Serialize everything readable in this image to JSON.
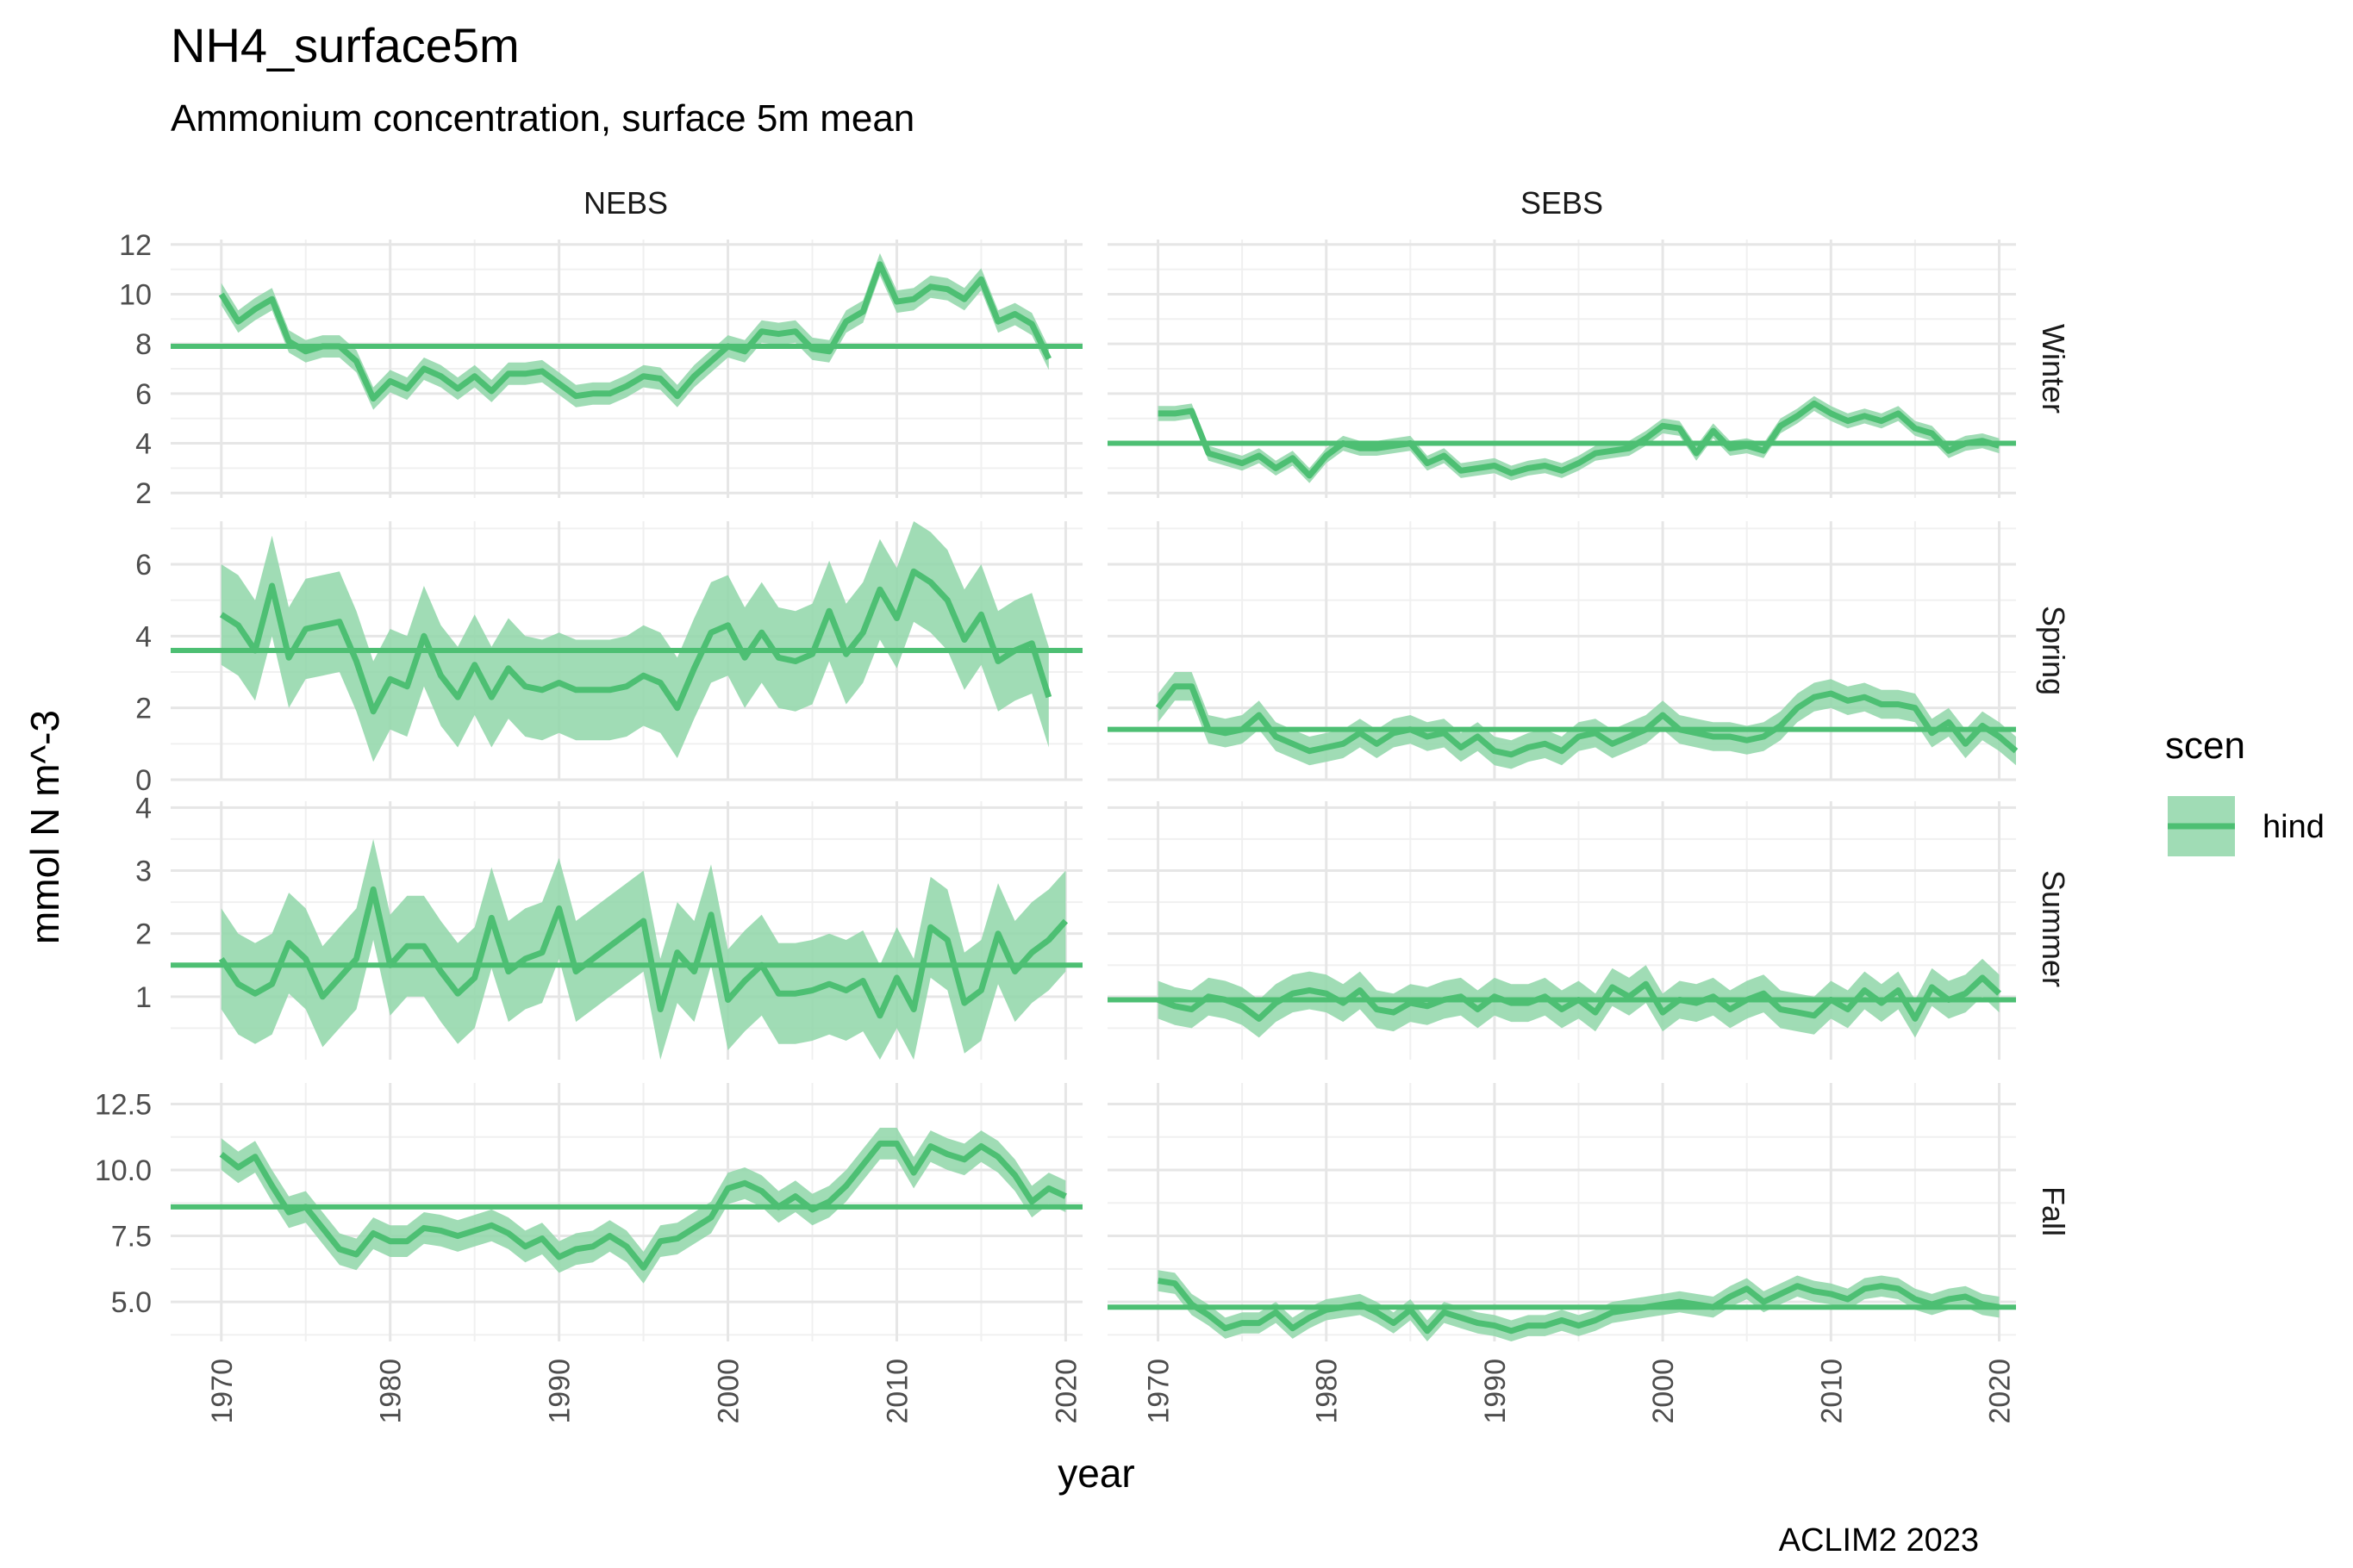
{
  "chart_data": {
    "type": "line",
    "title": "NH4_surface5m",
    "subtitle": "Ammonium concentration, surface 5m mean",
    "xlabel": "year",
    "ylabel": "mmol N m^-3",
    "caption": "ACLIM2 2023",
    "columns": [
      "NEBS",
      "SEBS"
    ],
    "rows": [
      "Winter",
      "Spring",
      "Summer",
      "Fall"
    ],
    "xlim": [
      1967,
      2021
    ],
    "x_ticks": [
      "1970",
      "1980",
      "1990",
      "2000",
      "2010",
      "2020"
    ],
    "x_tick_values": [
      1970,
      1980,
      1990,
      2000,
      2010,
      2020
    ],
    "grid": true,
    "line_color": "#4dbf73",
    "ribbon_color": "#8fd6a8",
    "legend": {
      "title": "scen",
      "position": "right",
      "entries": [
        {
          "name": "hind",
          "color": "#4dbf73"
        }
      ]
    },
    "series": [
      {
        "name": "hind",
        "scen": "hind",
        "region": "NEBS",
        "season": "Winter",
        "x_start": 1970,
        "y": [
          10.0,
          8.9,
          9.4,
          9.8,
          8.1,
          7.7,
          7.9,
          7.9,
          7.3,
          5.8,
          6.5,
          6.2,
          7.0,
          6.7,
          6.2,
          6.7,
          6.1,
          6.8,
          6.8,
          6.9,
          6.4,
          5.9,
          6.0,
          6.0,
          6.3,
          6.7,
          6.6,
          5.9,
          6.7,
          7.3,
          7.9,
          7.7,
          8.5,
          8.4,
          8.5,
          7.8,
          7.7,
          8.9,
          9.3,
          11.2,
          9.7,
          9.8,
          10.3,
          10.2,
          9.8,
          10.6,
          8.9,
          9.2,
          8.8,
          7.4
        ],
        "band": 0.45,
        "mean": 7.9,
        "ylim": [
          1.8,
          12.2
        ],
        "y_ticks": [
          "2",
          "4",
          "6",
          "8",
          "10",
          "12"
        ],
        "y_tick_values": [
          2,
          4,
          6,
          8,
          10,
          12
        ]
      },
      {
        "name": "hind",
        "scen": "hind",
        "region": "SEBS",
        "season": "Winter",
        "x_start": 1970,
        "y": [
          5.2,
          5.2,
          5.3,
          3.6,
          3.4,
          3.2,
          3.5,
          3.0,
          3.4,
          2.7,
          3.5,
          4.0,
          3.8,
          3.8,
          3.9,
          4.0,
          3.2,
          3.5,
          2.9,
          3.0,
          3.1,
          2.8,
          3.0,
          3.1,
          2.9,
          3.2,
          3.6,
          3.7,
          3.8,
          4.2,
          4.7,
          4.6,
          3.6,
          4.5,
          3.8,
          3.9,
          3.7,
          4.7,
          5.1,
          5.6,
          5.2,
          4.9,
          5.1,
          4.9,
          5.2,
          4.6,
          4.4,
          3.7,
          4.0,
          4.1,
          3.9
        ],
        "band": 0.3,
        "mean": 4.0,
        "ylim": [
          1.8,
          12.2
        ],
        "y_ticks": [
          "2",
          "4",
          "6",
          "8",
          "10",
          "12"
        ],
        "y_tick_values": [
          2,
          4,
          6,
          8,
          10,
          12
        ]
      },
      {
        "name": "hind",
        "scen": "hind",
        "region": "NEBS",
        "season": "Spring",
        "x_start": 1970,
        "y": [
          4.6,
          4.3,
          3.6,
          5.4,
          3.4,
          4.2,
          4.3,
          4.4,
          3.3,
          1.9,
          2.8,
          2.6,
          4.0,
          2.9,
          2.3,
          3.2,
          2.3,
          3.1,
          2.6,
          2.5,
          2.7,
          2.5,
          2.5,
          2.5,
          2.6,
          2.9,
          2.7,
          2.0,
          3.1,
          4.1,
          4.3,
          3.4,
          4.1,
          3.4,
          3.3,
          3.5,
          4.7,
          3.5,
          4.1,
          5.3,
          4.5,
          5.8,
          5.5,
          5.0,
          3.9,
          4.6,
          3.3,
          3.6,
          3.8,
          2.3
        ],
        "band": 1.4,
        "mean": 3.6,
        "ylim": [
          0,
          7.2
        ],
        "y_ticks": [
          "0",
          "2",
          "4",
          "6"
        ],
        "y_tick_values": [
          0,
          2,
          4,
          6
        ]
      },
      {
        "name": "hind",
        "scen": "hind",
        "region": "SEBS",
        "season": "Spring",
        "x_start": 1970,
        "y": [
          2.0,
          2.6,
          2.6,
          1.4,
          1.3,
          1.4,
          1.8,
          1.2,
          1.0,
          0.8,
          0.9,
          1.0,
          1.3,
          1.0,
          1.3,
          1.4,
          1.2,
          1.3,
          0.9,
          1.2,
          0.8,
          0.7,
          0.9,
          1.0,
          0.8,
          1.2,
          1.3,
          1.0,
          1.2,
          1.4,
          1.8,
          1.4,
          1.3,
          1.2,
          1.2,
          1.1,
          1.2,
          1.5,
          2.0,
          2.3,
          2.4,
          2.2,
          2.3,
          2.1,
          2.1,
          2.0,
          1.3,
          1.6,
          1.0,
          1.5,
          1.2,
          0.8
        ],
        "band": 0.4,
        "mean": 1.4,
        "ylim": [
          0,
          7.2
        ],
        "y_ticks": [
          "0",
          "2",
          "4",
          "6"
        ],
        "y_tick_values": [
          0,
          2,
          4,
          6
        ]
      },
      {
        "name": "hind",
        "scen": "hind",
        "region": "NEBS",
        "season": "Summer",
        "x_start": 1970,
        "y": [
          1.6,
          1.2,
          1.05,
          1.2,
          1.85,
          1.6,
          1.0,
          1.3,
          1.6,
          2.7,
          1.5,
          1.8,
          1.8,
          1.4,
          1.05,
          1.3,
          2.25,
          1.4,
          1.6,
          1.7,
          2.4,
          1.4,
          1.6,
          1.8,
          2.0,
          2.2,
          0.8,
          1.7,
          1.4,
          2.3,
          0.95,
          1.25,
          1.5,
          1.05,
          1.05,
          1.1,
          1.2,
          1.1,
          1.25,
          0.7,
          1.3,
          0.8,
          2.1,
          1.9,
          0.9,
          1.1,
          2.0,
          1.4,
          1.7,
          1.9,
          2.2
        ],
        "band": 0.8,
        "mean": 1.5,
        "ylim": [
          0,
          4.1
        ],
        "y_ticks": [
          "1",
          "2",
          "3",
          "4"
        ],
        "y_tick_values": [
          1,
          2,
          3,
          4
        ]
      },
      {
        "name": "hind",
        "scen": "hind",
        "region": "SEBS",
        "season": "Summer",
        "x_start": 1970,
        "y": [
          0.95,
          0.85,
          0.8,
          1.0,
          0.95,
          0.85,
          0.65,
          0.9,
          1.05,
          1.1,
          1.05,
          0.9,
          1.1,
          0.8,
          0.75,
          0.9,
          0.85,
          0.95,
          1.0,
          0.8,
          1.0,
          0.9,
          0.9,
          1.0,
          0.8,
          0.95,
          0.75,
          1.15,
          1.0,
          1.2,
          0.75,
          0.95,
          0.9,
          1.0,
          0.8,
          0.95,
          1.05,
          0.8,
          0.75,
          0.7,
          0.95,
          0.8,
          1.1,
          0.9,
          1.1,
          0.65,
          1.15,
          0.95,
          1.05,
          1.3,
          1.05
        ],
        "band": 0.3,
        "mean": 0.95,
        "ylim": [
          0,
          4.1
        ],
        "y_ticks": [
          "1",
          "2",
          "3",
          "4"
        ],
        "y_tick_values": [
          1,
          2,
          3,
          4
        ]
      },
      {
        "name": "hind",
        "scen": "hind",
        "region": "NEBS",
        "season": "Fall",
        "x_start": 1970,
        "y": [
          10.6,
          10.1,
          10.5,
          9.4,
          8.4,
          8.6,
          7.8,
          7.0,
          6.8,
          7.6,
          7.3,
          7.3,
          7.8,
          7.7,
          7.5,
          7.7,
          7.9,
          7.6,
          7.1,
          7.4,
          6.7,
          7.0,
          7.1,
          7.5,
          7.1,
          6.3,
          7.3,
          7.4,
          7.8,
          8.2,
          9.3,
          9.5,
          9.2,
          8.6,
          9.0,
          8.5,
          8.8,
          9.4,
          10.2,
          11.0,
          11.0,
          9.9,
          10.9,
          10.6,
          10.4,
          10.9,
          10.5,
          9.8,
          8.8,
          9.3,
          9.0
        ],
        "band": 0.6,
        "mean": 8.6,
        "ylim": [
          3.5,
          13.3
        ],
        "y_ticks": [
          "5.0",
          "7.5",
          "10.0",
          "12.5"
        ],
        "y_tick_values": [
          5,
          7.5,
          10,
          12.5
        ]
      },
      {
        "name": "hind",
        "scen": "hind",
        "region": "SEBS",
        "season": "Fall",
        "x_start": 1970,
        "y": [
          5.8,
          5.7,
          4.9,
          4.5,
          4.0,
          4.2,
          4.2,
          4.6,
          4.0,
          4.4,
          4.7,
          4.8,
          4.9,
          4.6,
          4.2,
          4.7,
          3.9,
          4.6,
          4.4,
          4.2,
          4.1,
          3.9,
          4.1,
          4.1,
          4.3,
          4.1,
          4.3,
          4.6,
          4.7,
          4.8,
          4.9,
          5.0,
          4.9,
          4.8,
          5.2,
          5.5,
          5.0,
          5.3,
          5.6,
          5.4,
          5.3,
          5.1,
          5.5,
          5.6,
          5.5,
          5.1,
          4.9,
          5.1,
          5.2,
          4.9,
          4.8
        ],
        "band": 0.4,
        "mean": 4.8,
        "ylim": [
          3.5,
          13.3
        ],
        "y_ticks": [
          "5.0",
          "7.5",
          "10.0",
          "12.5"
        ],
        "y_tick_values": [
          5,
          7.5,
          10,
          12.5
        ]
      }
    ]
  }
}
